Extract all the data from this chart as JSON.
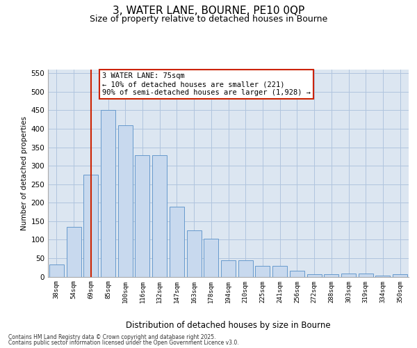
{
  "title1": "3, WATER LANE, BOURNE, PE10 0QP",
  "title2": "Size of property relative to detached houses in Bourne",
  "xlabel": "Distribution of detached houses by size in Bourne",
  "ylabel": "Number of detached properties",
  "categories": [
    "38sqm",
    "54sqm",
    "69sqm",
    "85sqm",
    "100sqm",
    "116sqm",
    "132sqm",
    "147sqm",
    "163sqm",
    "178sqm",
    "194sqm",
    "210sqm",
    "225sqm",
    "241sqm",
    "256sqm",
    "272sqm",
    "288sqm",
    "303sqm",
    "319sqm",
    "334sqm",
    "350sqm"
  ],
  "values": [
    33,
    135,
    275,
    450,
    410,
    328,
    328,
    190,
    125,
    102,
    44,
    44,
    29,
    29,
    16,
    7,
    7,
    9,
    9,
    3,
    6
  ],
  "bar_color": "#c8d9ee",
  "bar_edge_color": "#6699cc",
  "grid_color": "#b0c4de",
  "bg_color": "#dce6f1",
  "vline_x_idx": 2.0,
  "vline_color": "#cc2200",
  "annotation_line1": "3 WATER LANE: 75sqm",
  "annotation_line2": "← 10% of detached houses are smaller (221)",
  "annotation_line3": "90% of semi-detached houses are larger (1,928) →",
  "annotation_box_edgecolor": "#cc2200",
  "footer1": "Contains HM Land Registry data © Crown copyright and database right 2025.",
  "footer2": "Contains public sector information licensed under the Open Government Licence v3.0.",
  "ylim_max": 560,
  "yticks": [
    0,
    50,
    100,
    150,
    200,
    250,
    300,
    350,
    400,
    450,
    500,
    550
  ]
}
